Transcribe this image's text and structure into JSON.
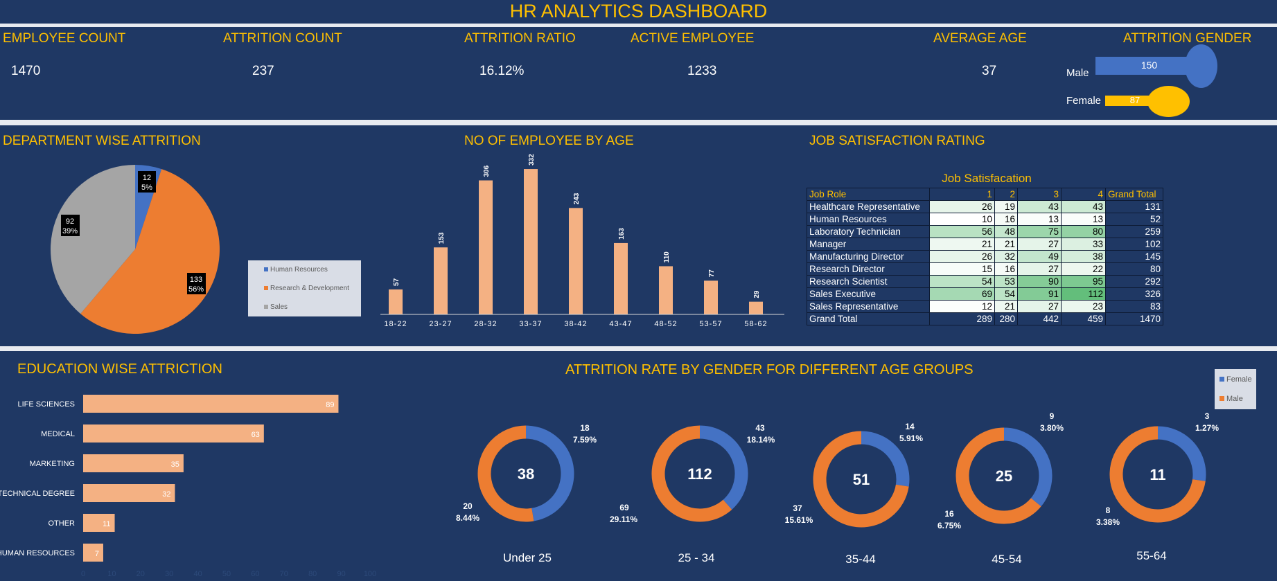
{
  "header": {
    "title": "HR ANALYTICS DASHBOARD"
  },
  "kpis": {
    "employee_count": {
      "label": "EMPLOYEE COUNT",
      "value": "1470"
    },
    "attrition_count": {
      "label": "ATTRITION COUNT",
      "value": "237"
    },
    "attrition_ratio": {
      "label": "ATTRITION RATIO",
      "value": "16.12%"
    },
    "active_employee": {
      "label": "ACTIVE EMPLOYEE",
      "value": "1233"
    },
    "average_age": {
      "label": "AVERAGE AGE",
      "value": "37"
    }
  },
  "attrition_gender": {
    "title": "ATTRITION GENDER",
    "male_label": "Male",
    "male_value": "150",
    "male_color": "#4472c4",
    "female_label": "Female",
    "female_value": "87",
    "female_color": "#ffc000"
  },
  "department": {
    "title": "DEPARTMENT WISE ATTRITION",
    "legend": [
      "Human Resources",
      "Research & Development",
      "Sales"
    ],
    "labels": {
      "hr_count": "12",
      "hr_pct": "5%",
      "rd_count": "133",
      "rd_pct": "56%",
      "sales_count": "92",
      "sales_pct": "39%"
    }
  },
  "age_chart": {
    "title": "NO OF EMPLOYEE BY AGE",
    "value_labels": [
      "57",
      "153",
      "306",
      "332",
      "243",
      "163",
      "110",
      "77",
      "29"
    ],
    "tick_labels": [
      "18-22",
      "23-27",
      "28-32",
      "33-37",
      "38-42",
      "43-47",
      "48-52",
      "53-57",
      "58-62"
    ]
  },
  "job_satisfaction": {
    "section_title": "JOB SATISFACTION RATING",
    "table_title": "Job Satisfacation",
    "headers": [
      "Job Role",
      "1",
      "2",
      "3",
      "4",
      "Grand Total"
    ],
    "rows": [
      {
        "role": "Healthcare Representative",
        "c1": "26",
        "c2": "19",
        "c3": "43",
        "c4": "43",
        "gt": "131"
      },
      {
        "role": "Human Resources",
        "c1": "10",
        "c2": "16",
        "c3": "13",
        "c4": "13",
        "gt": "52"
      },
      {
        "role": "Laboratory Technician",
        "c1": "56",
        "c2": "48",
        "c3": "75",
        "c4": "80",
        "gt": "259"
      },
      {
        "role": "Manager",
        "c1": "21",
        "c2": "21",
        "c3": "27",
        "c4": "33",
        "gt": "102"
      },
      {
        "role": "Manufacturing Director",
        "c1": "26",
        "c2": "32",
        "c3": "49",
        "c4": "38",
        "gt": "145"
      },
      {
        "role": "Research Director",
        "c1": "15",
        "c2": "16",
        "c3": "27",
        "c4": "22",
        "gt": "80"
      },
      {
        "role": "Research Scientist",
        "c1": "54",
        "c2": "53",
        "c3": "90",
        "c4": "95",
        "gt": "292"
      },
      {
        "role": "Sales Executive",
        "c1": "69",
        "c2": "54",
        "c3": "91",
        "c4": "112",
        "gt": "326"
      },
      {
        "role": "Sales Representative",
        "c1": "12",
        "c2": "21",
        "c3": "27",
        "c4": "23",
        "gt": "83"
      }
    ],
    "grand_total": {
      "role": "Grand Total",
      "c1": "289",
      "c2": "280",
      "c3": "442",
      "c4": "459",
      "gt": "1470"
    }
  },
  "education": {
    "title": "EDUCATION WISE ATTRICTION",
    "categories": [
      "LIFE SCIENCES",
      "MEDICAL",
      "MARKETING",
      "TECHNICAL DEGREE",
      "OTHER",
      "HUMAN RESOURCES"
    ],
    "values": [
      "89",
      "63",
      "35",
      "32",
      "11",
      "7"
    ],
    "axis_ticks": [
      "0",
      "10",
      "20",
      "30",
      "40",
      "50",
      "60",
      "70",
      "80",
      "90",
      "100"
    ]
  },
  "gender_age": {
    "title": "ATTRITION RATE BY GENDER FOR DIFFERENT AGE GROUPS",
    "legend": [
      "Female",
      "Male"
    ],
    "groups": [
      {
        "label": "Under 25",
        "total": "38",
        "female": "18",
        "female_pct": "7.59%",
        "male": "20",
        "male_pct": "8.44%"
      },
      {
        "label": "25 - 34",
        "total": "112",
        "female": "43",
        "female_pct": "18.14%",
        "male": "69",
        "male_pct": "29.11%"
      },
      {
        "label": "35-44",
        "total": "51",
        "female": "14",
        "female_pct": "5.91%",
        "male": "37",
        "male_pct": "15.61%"
      },
      {
        "label": "45-54",
        "total": "25",
        "female": "9",
        "female_pct": "3.80%",
        "male": "16",
        "male_pct": "6.75%"
      },
      {
        "label": "55-64",
        "total": "11",
        "female": "3",
        "female_pct": "1.27%",
        "male": "8",
        "male_pct": "3.38%"
      }
    ]
  },
  "chart_data": [
    {
      "type": "pie",
      "title": "DEPARTMENT WISE ATTRITION",
      "categories": [
        "Human Resources",
        "Research & Development",
        "Sales"
      ],
      "values": [
        12,
        133,
        92
      ],
      "percentages": [
        5,
        56,
        39
      ],
      "colors": [
        "#4472c4",
        "#ed7d31",
        "#a5a5a5"
      ],
      "legend": "right"
    },
    {
      "type": "bar",
      "title": "NO OF EMPLOYEE BY AGE",
      "categories": [
        "18-22",
        "23-27",
        "28-32",
        "33-37",
        "38-42",
        "43-47",
        "48-52",
        "53-57",
        "58-62"
      ],
      "values": [
        57,
        153,
        306,
        332,
        243,
        163,
        110,
        77,
        29
      ],
      "ylim": [
        0,
        340
      ],
      "color": "#f4b183",
      "grid": false
    },
    {
      "type": "table",
      "title": "Job Satisfacation",
      "columns": [
        "Job Role",
        "1",
        "2",
        "3",
        "4",
        "Grand Total"
      ],
      "note": "values in job_satisfaction.rows; green intensity scales with value"
    },
    {
      "type": "bar",
      "orientation": "horizontal",
      "title": "EDUCATION WISE ATTRICTION",
      "categories": [
        "LIFE SCIENCES",
        "MEDICAL",
        "MARKETING",
        "TECHNICAL DEGREE",
        "OTHER",
        "HUMAN RESOURCES"
      ],
      "values": [
        89,
        63,
        35,
        32,
        11,
        7
      ],
      "xlim": [
        0,
        100
      ],
      "color": "#f4b183"
    },
    {
      "type": "pie",
      "subtype": "donut",
      "title": "ATTRITION RATE BY GENDER FOR DIFFERENT AGE GROUPS",
      "categories": [
        "Under 25",
        "25 - 34",
        "35-44",
        "45-54",
        "55-64"
      ],
      "series": [
        {
          "name": "Female",
          "values": [
            18,
            43,
            14,
            9,
            3
          ],
          "percentages": [
            7.59,
            18.14,
            5.91,
            3.8,
            1.27
          ],
          "color": "#4472c4"
        },
        {
          "name": "Male",
          "values": [
            20,
            69,
            37,
            16,
            8
          ],
          "percentages": [
            8.44,
            29.11,
            15.61,
            6.75,
            3.38
          ],
          "color": "#ed7d31"
        }
      ],
      "totals": [
        38,
        112,
        51,
        25,
        11
      ],
      "legend": "top-right"
    }
  ]
}
